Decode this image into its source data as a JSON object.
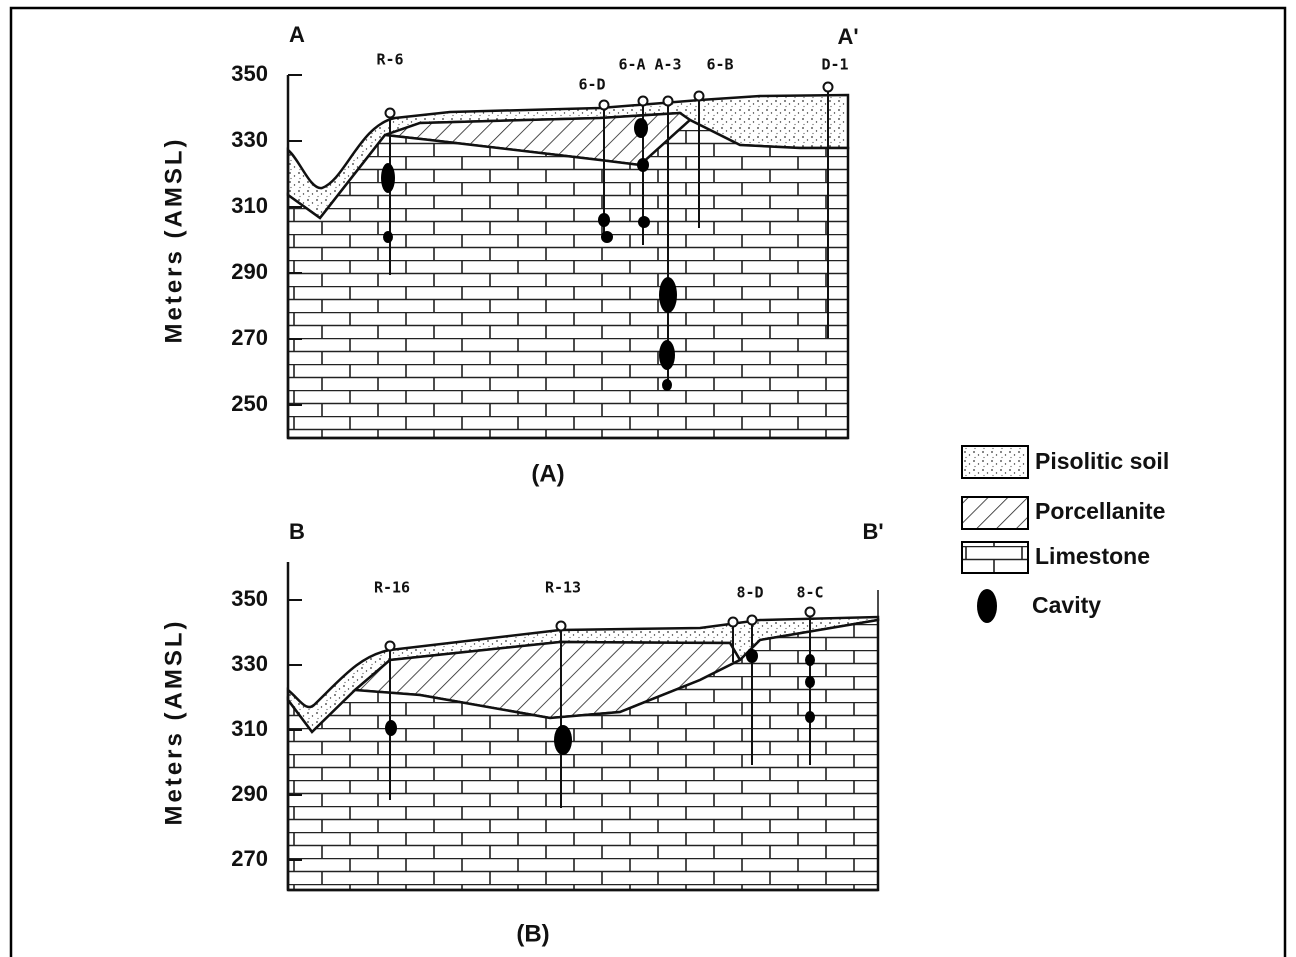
{
  "panels": [
    {
      "caption": "(A)",
      "section_start": "A",
      "section_end": "A'",
      "y_axis_label": "Meters (AMSL)",
      "yticks": [
        350,
        330,
        310,
        290,
        270,
        250
      ],
      "wells": [
        "R-6",
        "6-D",
        "6-A",
        "A-3",
        "6-B",
        "D-1"
      ]
    },
    {
      "caption": "(B)",
      "section_start": "B",
      "section_end": "B'",
      "y_axis_label": "Meters (AMSL)",
      "yticks": [
        350,
        330,
        310,
        290,
        270
      ],
      "wells": [
        "R-16",
        "R-13",
        "8-D",
        "8-C"
      ]
    }
  ],
  "legend": [
    "Pisolitic soil",
    "Porcellanite",
    "Limestone",
    "Cavity"
  ]
}
